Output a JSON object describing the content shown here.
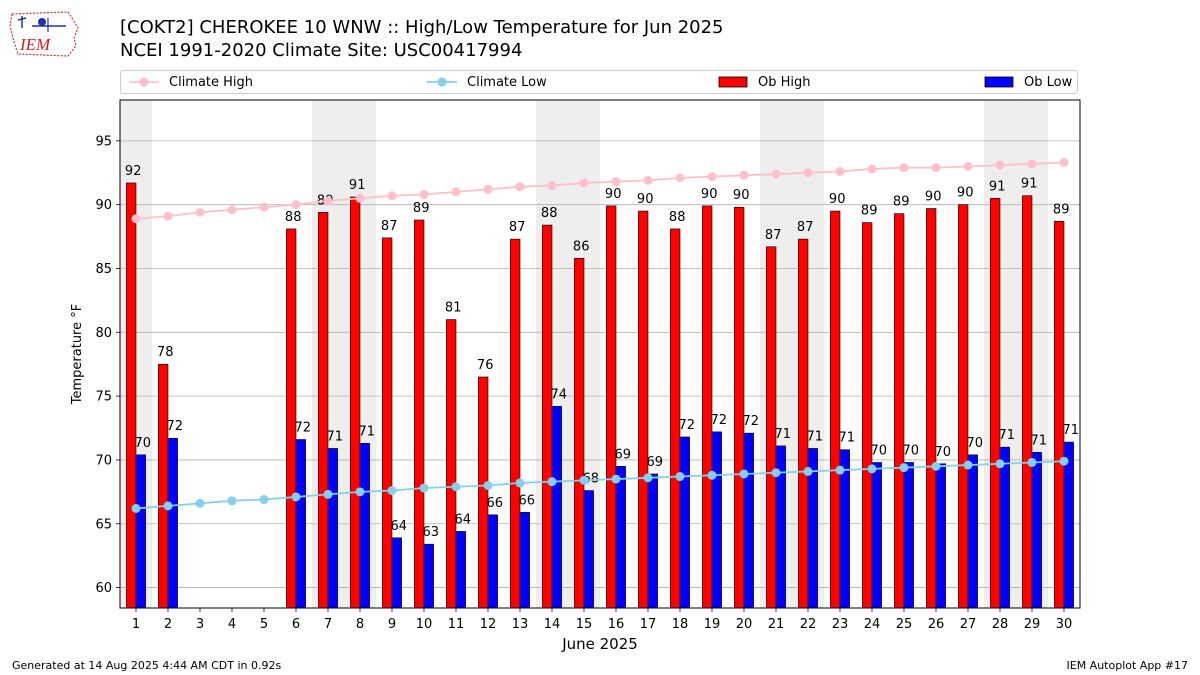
{
  "header": {
    "title_line1": "[COKT2] CHEROKEE 10 WNW :: High/Low Temperature for Jun 2025",
    "title_line2": "NCEI 1991-2020 Climate Site: USC00417994",
    "logo_text": "IEM"
  },
  "footer": {
    "generated": "Generated at 14 Aug 2025 4:44 AM CDT in 0.92s",
    "app": "IEM Autoplot App #17"
  },
  "colors": {
    "climate_high": "#ffc0cb",
    "climate_low": "#87ceeb",
    "ob_high": "#ff0000",
    "ob_low": "#0000ff",
    "weekend_shade": "#eeeeee",
    "grid": "#b0b0b0"
  },
  "chart_data": {
    "type": "bar",
    "xlabel": "June 2025",
    "ylabel": "Temperature °F",
    "ylim": [
      58.4,
      98.2
    ],
    "yticks": [
      60,
      65,
      70,
      75,
      80,
      85,
      90,
      95
    ],
    "grid": true,
    "legend_position": "top",
    "x": [
      1,
      2,
      3,
      4,
      5,
      6,
      7,
      8,
      9,
      10,
      11,
      12,
      13,
      14,
      15,
      16,
      17,
      18,
      19,
      20,
      21,
      22,
      23,
      24,
      25,
      26,
      27,
      28,
      29,
      30
    ],
    "weekend_days": [
      1,
      7,
      8,
      14,
      15,
      21,
      22,
      28,
      29
    ],
    "series": [
      {
        "name": "Ob High",
        "kind": "bar",
        "values": [
          91.7,
          77.5,
          null,
          null,
          null,
          88.1,
          89.4,
          90.6,
          87.4,
          88.8,
          81.0,
          76.5,
          87.3,
          88.4,
          85.8,
          89.9,
          89.5,
          88.1,
          89.9,
          89.8,
          86.7,
          87.3,
          89.5,
          88.6,
          89.3,
          89.7,
          90.0,
          90.5,
          90.7,
          88.7
        ],
        "labels": [
          "92",
          "78",
          "",
          "",
          "",
          "88",
          "89",
          "91",
          "87",
          "89",
          "81",
          "76",
          "87",
          "88",
          "86",
          "90",
          "90",
          "88",
          "90",
          "90",
          "87",
          "87",
          "90",
          "89",
          "89",
          "90",
          "90",
          "91",
          "91",
          "89"
        ]
      },
      {
        "name": "Ob Low",
        "kind": "bar",
        "values": [
          70.4,
          71.7,
          null,
          null,
          null,
          71.6,
          70.9,
          71.3,
          63.9,
          63.4,
          64.4,
          65.7,
          65.9,
          74.2,
          67.6,
          69.5,
          68.9,
          71.8,
          72.2,
          72.1,
          71.1,
          70.9,
          70.8,
          69.8,
          69.8,
          69.7,
          70.4,
          71.0,
          70.6,
          71.4
        ],
        "labels": [
          "70",
          "72",
          "",
          "",
          "",
          "72",
          "71",
          "71",
          "64",
          "63",
          "64",
          "66",
          "66",
          "74",
          "68",
          "69",
          "69",
          "72",
          "72",
          "72",
          "71",
          "71",
          "71",
          "70",
          "70",
          "70",
          "70",
          "71",
          "71",
          "71"
        ]
      },
      {
        "name": "Climate High",
        "kind": "line",
        "values": [
          88.9,
          89.1,
          89.4,
          89.6,
          89.8,
          90.0,
          90.3,
          90.5,
          90.7,
          90.8,
          91.0,
          91.2,
          91.4,
          91.5,
          91.7,
          91.8,
          91.9,
          92.1,
          92.2,
          92.3,
          92.4,
          92.5,
          92.6,
          92.8,
          92.9,
          92.9,
          93.0,
          93.1,
          93.2,
          93.3
        ]
      },
      {
        "name": "Climate Low",
        "kind": "line",
        "values": [
          66.2,
          66.4,
          66.6,
          66.8,
          66.9,
          67.1,
          67.3,
          67.5,
          67.6,
          67.8,
          67.9,
          68.0,
          68.2,
          68.3,
          68.4,
          68.5,
          68.6,
          68.7,
          68.8,
          68.9,
          69.0,
          69.1,
          69.2,
          69.3,
          69.4,
          69.5,
          69.6,
          69.7,
          69.8,
          69.9
        ]
      }
    ]
  }
}
